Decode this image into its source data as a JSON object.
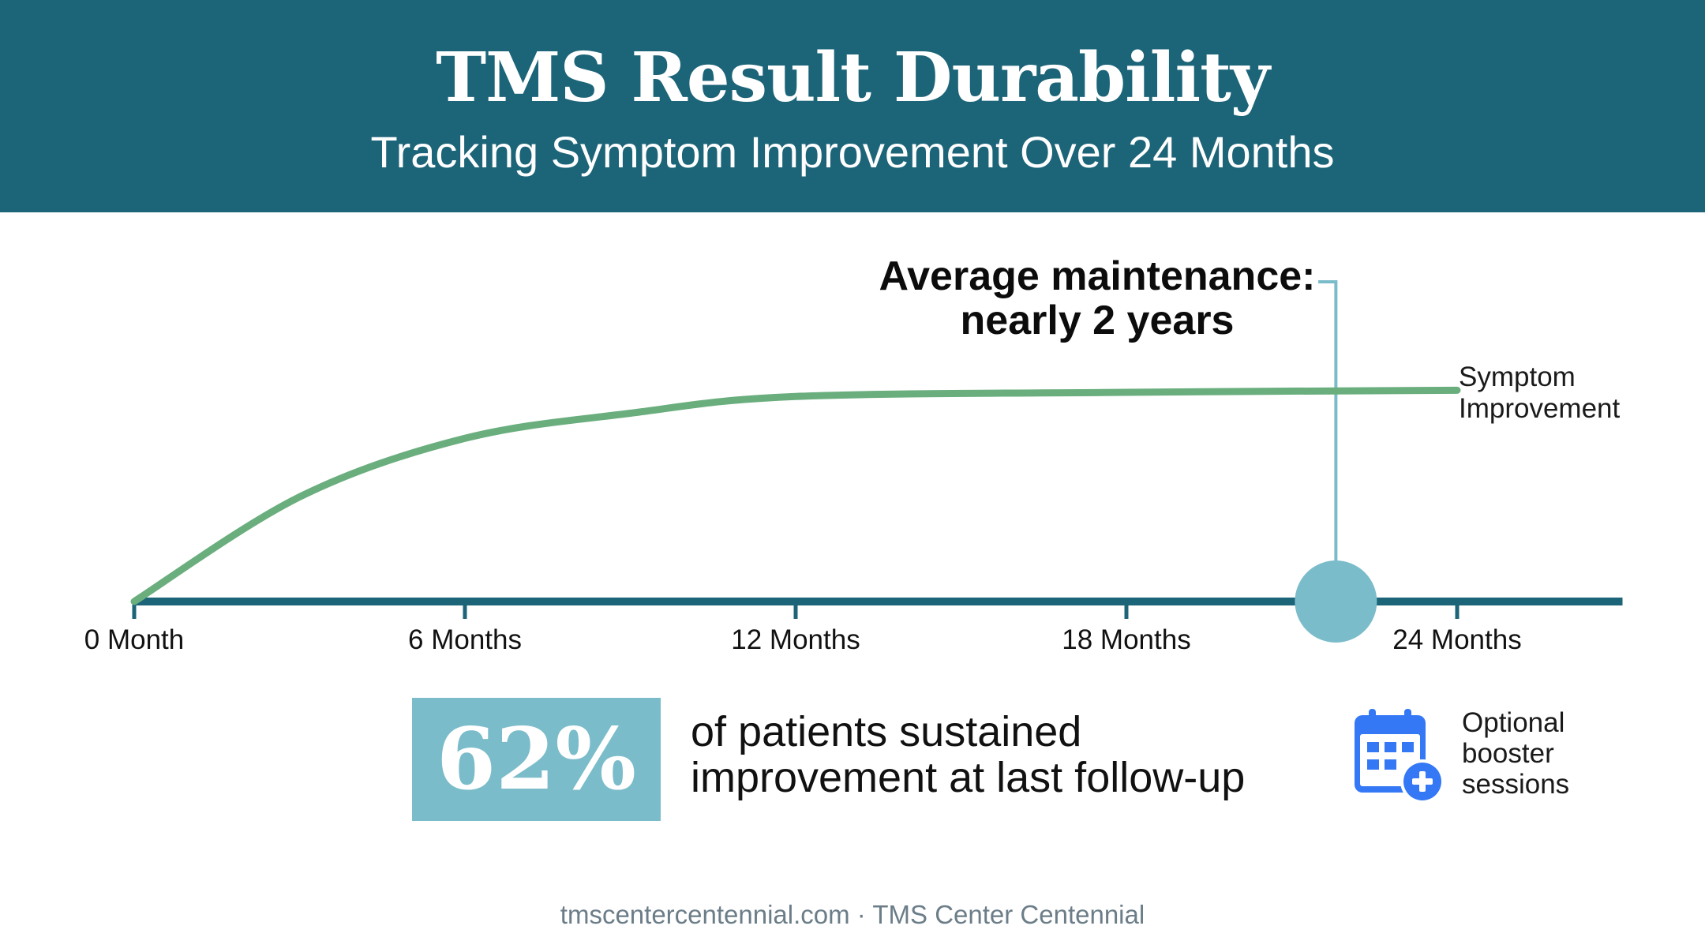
{
  "header": {
    "title": "TMS Result Durability",
    "subtitle": "Tracking Symptom Improvement Over 24 Months"
  },
  "chart_data": {
    "type": "line",
    "title": "TMS Result Durability",
    "subtitle": "Tracking Symptom Improvement Over 24 Months",
    "xlabel": "",
    "ylabel": "",
    "xlim": [
      0,
      27
    ],
    "ylim": [
      0,
      100
    ],
    "x_ticks": [
      0,
      6,
      12,
      18,
      24
    ],
    "tick_labels": [
      "0 Month",
      "6 Months",
      "12 Months",
      "18 Months",
      "24 Months"
    ],
    "series": [
      {
        "name": "Symptom Improvement",
        "color": "#6aae7e",
        "x": [
          0,
          3,
          6,
          9,
          12,
          18,
          24
        ],
        "y": [
          0,
          50,
          78,
          90,
          98,
          100,
          101
        ]
      }
    ],
    "annotation": {
      "x": 21.8,
      "text_line1": "Average maintenance:",
      "text_line2": "nearly 2 years",
      "color": "#7bbcca"
    },
    "grid": false,
    "axis_color": "#1c6478"
  },
  "stat": {
    "value": "62%",
    "line1": "of patients sustained",
    "line2": "improvement at last follow-up"
  },
  "booster": {
    "icon": "calendar-plus-icon",
    "line1": "Optional",
    "line2": "booster",
    "line3": "sessions",
    "color": "#3478f6"
  },
  "footer": {
    "text": "tmscentercentennial.com · TMS Center Centennial"
  }
}
